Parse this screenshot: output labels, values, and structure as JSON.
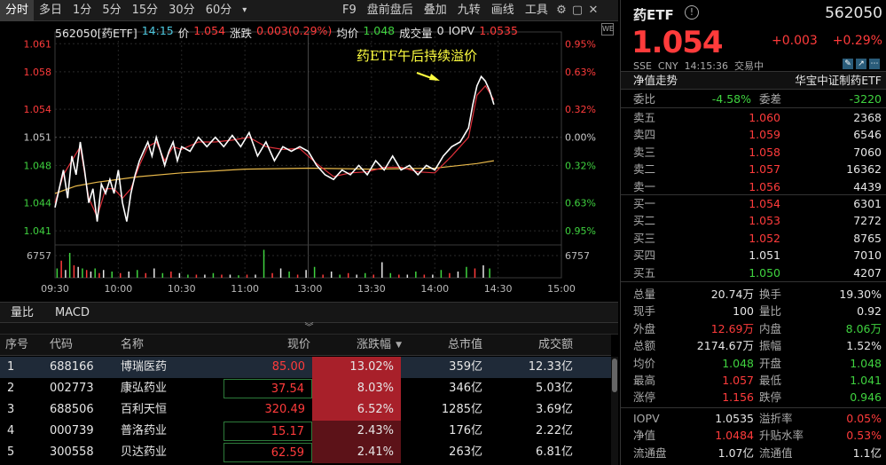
{
  "toolbar": {
    "tabs": [
      "分时",
      "多日",
      "1分",
      "5分",
      "15分",
      "30分",
      "60分"
    ],
    "dropdown": "▾",
    "right_items": [
      "F9",
      "盘前盘后",
      "叠加",
      "九转",
      "画线",
      "工具"
    ],
    "icons": [
      "gear-icon",
      "minimize-icon",
      "close-icon"
    ]
  },
  "info_line": {
    "code_name": "562050[药ETF]",
    "time": "14:15",
    "price_label": "价",
    "price": "1.054",
    "change_label": "涨跌",
    "change": "0.003(0.29%)",
    "avg_label": "均价",
    "avg": "1.048",
    "volume_label": "成交量",
    "volume": "0",
    "iopv_label": "IOPV",
    "iopv": "1.0535"
  },
  "chart_data": {
    "type": "line",
    "title": "",
    "annotation": "药ETF午后持续溢价",
    "left_ticks": [
      "1.061",
      "1.058",
      "1.054",
      "1.051",
      "1.048",
      "1.044",
      "1.041"
    ],
    "right_ticks": [
      "0.95%",
      "0.63%",
      "0.32%",
      "0.00%",
      "0.32%",
      "0.63%",
      "0.95%"
    ],
    "right_tick_colors": [
      "#ff3b3b",
      "#ff3b3b",
      "#ff3b3b",
      "#cccccc",
      "#3fd23f",
      "#3fd23f",
      "#3fd23f"
    ],
    "left_tick_colors": [
      "#ff3b3b",
      "#ff3b3b",
      "#ff3b3b",
      "#cccccc",
      "#3fd23f",
      "#3fd23f",
      "#3fd23f"
    ],
    "volume_tick": "6757",
    "x_ticks": [
      "09:30",
      "10:00",
      "10:30",
      "11:00",
      "13:00",
      "13:30",
      "14:00",
      "14:30",
      "15:00"
    ],
    "ylim": [
      1.0395,
      1.0615
    ],
    "price_series": [
      [
        0,
        1.0435
      ],
      [
        2,
        1.0455
      ],
      [
        4,
        1.0475
      ],
      [
        6,
        1.0445
      ],
      [
        8,
        1.049
      ],
      [
        10,
        1.047
      ],
      [
        12,
        1.0505
      ],
      [
        14,
        1.0475
      ],
      [
        16,
        1.044
      ],
      [
        18,
        1.0455
      ],
      [
        20,
        1.042
      ],
      [
        22,
        1.046
      ],
      [
        24,
        1.045
      ],
      [
        26,
        1.0465
      ],
      [
        28,
        1.045
      ],
      [
        30,
        1.0475
      ],
      [
        32,
        1.044
      ],
      [
        34,
        1.042
      ],
      [
        36,
        1.045
      ],
      [
        38,
        1.047
      ],
      [
        40,
        1.0485
      ],
      [
        42,
        1.0495
      ],
      [
        44,
        1.0505
      ],
      [
        46,
        1.049
      ],
      [
        48,
        1.051
      ],
      [
        50,
        1.0495
      ],
      [
        52,
        1.048
      ],
      [
        54,
        1.0495
      ],
      [
        56,
        1.0505
      ],
      [
        58,
        1.0485
      ],
      [
        60,
        1.05
      ],
      [
        64,
        1.0495
      ],
      [
        68,
        1.051
      ],
      [
        72,
        1.05
      ],
      [
        76,
        1.051
      ],
      [
        80,
        1.05
      ],
      [
        84,
        1.0512
      ],
      [
        88,
        1.05
      ],
      [
        92,
        1.0515
      ],
      [
        96,
        1.049
      ],
      [
        100,
        1.0505
      ],
      [
        104,
        1.0485
      ],
      [
        108,
        1.05
      ],
      [
        112,
        1.0495
      ],
      [
        116,
        1.05
      ],
      [
        120,
        1.0495
      ],
      [
        124,
        1.048
      ],
      [
        128,
        1.047
      ],
      [
        132,
        1.0465
      ],
      [
        136,
        1.0475
      ],
      [
        140,
        1.047
      ],
      [
        144,
        1.048
      ],
      [
        148,
        1.047
      ],
      [
        152,
        1.0485
      ],
      [
        156,
        1.0475
      ],
      [
        160,
        1.049
      ],
      [
        164,
        1.0475
      ],
      [
        168,
        1.048
      ],
      [
        172,
        1.047
      ],
      [
        176,
        1.048
      ],
      [
        180,
        1.0475
      ],
      [
        184,
        1.049
      ],
      [
        188,
        1.05
      ],
      [
        192,
        1.0505
      ],
      [
        196,
        1.052
      ],
      [
        198,
        1.0545
      ],
      [
        200,
        1.0565
      ],
      [
        202,
        1.0575
      ],
      [
        204,
        1.057
      ],
      [
        206,
        1.056
      ],
      [
        208,
        1.0545
      ]
    ],
    "iopv_series": [
      [
        0,
        1.044
      ],
      [
        4,
        1.047
      ],
      [
        8,
        1.0485
      ],
      [
        12,
        1.05
      ],
      [
        16,
        1.0445
      ],
      [
        20,
        1.0425
      ],
      [
        24,
        1.0455
      ],
      [
        28,
        1.0455
      ],
      [
        32,
        1.0445
      ],
      [
        36,
        1.0455
      ],
      [
        40,
        1.048
      ],
      [
        44,
        1.05
      ],
      [
        48,
        1.0505
      ],
      [
        52,
        1.0485
      ],
      [
        56,
        1.05
      ],
      [
        60,
        1.0497
      ],
      [
        68,
        1.0505
      ],
      [
        76,
        1.0505
      ],
      [
        84,
        1.0507
      ],
      [
        92,
        1.051
      ],
      [
        100,
        1.05
      ],
      [
        108,
        1.0497
      ],
      [
        116,
        1.0498
      ],
      [
        124,
        1.0482
      ],
      [
        132,
        1.0468
      ],
      [
        140,
        1.0472
      ],
      [
        148,
        1.0473
      ],
      [
        156,
        1.0478
      ],
      [
        164,
        1.0478
      ],
      [
        172,
        1.0473
      ],
      [
        180,
        1.0472
      ],
      [
        188,
        1.049
      ],
      [
        196,
        1.051
      ],
      [
        200,
        1.0555
      ],
      [
        204,
        1.0565
      ],
      [
        208,
        1.055
      ]
    ],
    "avg_series": [
      [
        0,
        1.045
      ],
      [
        10,
        1.0458
      ],
      [
        20,
        1.0462
      ],
      [
        40,
        1.0468
      ],
      [
        60,
        1.0472
      ],
      [
        90,
        1.0476
      ],
      [
        120,
        1.0477
      ],
      [
        150,
        1.0476
      ],
      [
        180,
        1.0477
      ],
      [
        200,
        1.0482
      ],
      [
        208,
        1.0485
      ]
    ],
    "volume_series": [
      [
        1,
        0.3
      ],
      [
        3,
        0.55
      ],
      [
        5,
        0.25
      ],
      [
        7,
        0.8
      ],
      [
        9,
        0.4
      ],
      [
        11,
        0.35
      ],
      [
        13,
        0.3
      ],
      [
        15,
        0.25
      ],
      [
        17,
        0.2
      ],
      [
        19,
        0.3
      ],
      [
        21,
        0.15
      ],
      [
        23,
        0.25
      ],
      [
        27,
        0.2
      ],
      [
        31,
        0.15
      ],
      [
        35,
        0.2
      ],
      [
        39,
        0.25
      ],
      [
        43,
        0.15
      ],
      [
        47,
        0.3
      ],
      [
        51,
        0.15
      ],
      [
        55,
        0.2
      ],
      [
        59,
        0.15
      ],
      [
        63,
        0.1
      ],
      [
        67,
        0.1
      ],
      [
        71,
        0.1
      ],
      [
        75,
        0.15
      ],
      [
        79,
        0.1
      ],
      [
        83,
        0.1
      ],
      [
        87,
        0.08
      ],
      [
        91,
        0.1
      ],
      [
        95,
        0.1
      ],
      [
        99,
        0.9
      ],
      [
        103,
        0.15
      ],
      [
        107,
        0.3
      ],
      [
        111,
        0.2
      ],
      [
        115,
        0.1
      ],
      [
        119,
        0.25
      ],
      [
        123,
        0.35
      ],
      [
        127,
        0.1
      ],
      [
        131,
        0.2
      ],
      [
        135,
        0.1
      ],
      [
        139,
        0.15
      ],
      [
        143,
        0.1
      ],
      [
        147,
        0.15
      ],
      [
        151,
        0.1
      ],
      [
        155,
        0.5
      ],
      [
        159,
        0.15
      ],
      [
        163,
        0.1
      ],
      [
        167,
        0.1
      ],
      [
        171,
        0.2
      ],
      [
        175,
        0.1
      ],
      [
        179,
        0.1
      ],
      [
        183,
        0.25
      ],
      [
        187,
        0.15
      ],
      [
        191,
        0.2
      ],
      [
        195,
        0.35
      ],
      [
        199,
        0.3
      ],
      [
        203,
        0.4
      ],
      [
        206,
        0.3
      ]
    ],
    "volume_colors": [
      "#3fd23f",
      "#ff3b3b",
      "#e6e6e6"
    ],
    "total_minutes": 240
  },
  "indicator_tabs": [
    "量比",
    "MACD"
  ],
  "table": {
    "headers": [
      "序号",
      "代码",
      "名称",
      "现价",
      "涨跌幅",
      "总市值",
      "成交额"
    ],
    "sort_icon": "▼",
    "rows": [
      {
        "no": "1",
        "code": "688166",
        "name": "博瑞医药",
        "price": "85.00",
        "change": "13.02%",
        "cap": "359亿",
        "amount": "12.33亿"
      },
      {
        "no": "2",
        "code": "002773",
        "name": "康弘药业",
        "price": "37.54",
        "change": "8.03%",
        "cap": "346亿",
        "amount": "5.03亿"
      },
      {
        "no": "3",
        "code": "688506",
        "name": "百利天恒",
        "price": "320.49",
        "change": "6.52%",
        "cap": "1285亿",
        "amount": "3.69亿"
      },
      {
        "no": "4",
        "code": "000739",
        "name": "普洛药业",
        "price": "15.17",
        "change": "2.43%",
        "cap": "176亿",
        "amount": "2.22亿"
      },
      {
        "no": "5",
        "code": "300558",
        "name": "贝达药业",
        "price": "62.59",
        "change": "2.41%",
        "cap": "263亿",
        "amount": "6.81亿"
      }
    ]
  },
  "right": {
    "name": "药ETF",
    "code": "562050",
    "price": "1.054",
    "change": "+0.003",
    "change_pct": "+0.29%",
    "exchange": "SSE",
    "currency": "CNY",
    "time": "14:15:36",
    "status": "交易中",
    "nav_label": "净值走势",
    "index_label": "华宝中证制药ETF",
    "weibi_label": "委比",
    "weibi": "-4.58%",
    "weicha_label": "委差",
    "weicha": "-3220",
    "asks": [
      {
        "label": "卖五",
        "price": "1.060",
        "vol": "2368"
      },
      {
        "label": "卖四",
        "price": "1.059",
        "vol": "6546"
      },
      {
        "label": "卖三",
        "price": "1.058",
        "vol": "7060"
      },
      {
        "label": "卖二",
        "price": "1.057",
        "vol": "16362"
      },
      {
        "label": "卖一",
        "price": "1.056",
        "vol": "4439"
      }
    ],
    "bids": [
      {
        "label": "买一",
        "price": "1.054",
        "vol": "6301",
        "color": "red"
      },
      {
        "label": "买二",
        "price": "1.053",
        "vol": "7272",
        "color": "red"
      },
      {
        "label": "买三",
        "price": "1.052",
        "vol": "8765",
        "color": "red"
      },
      {
        "label": "买四",
        "price": "1.051",
        "vol": "7010",
        "color": "white"
      },
      {
        "label": "买五",
        "price": "1.050",
        "vol": "4207",
        "color": "green"
      }
    ],
    "stats": [
      {
        "l1": "总量",
        "v1": "20.74万",
        "c1": "white",
        "l2": "换手",
        "v2": "19.30%",
        "c2": "white"
      },
      {
        "l1": "现手",
        "v1": "100",
        "c1": "white",
        "l2": "量比",
        "v2": "0.92",
        "c2": "white"
      },
      {
        "l1": "外盘",
        "v1": "12.69万",
        "c1": "red",
        "l2": "内盘",
        "v2": "8.06万",
        "c2": "green"
      },
      {
        "l1": "总额",
        "v1": "2174.67万",
        "c1": "white",
        "l2": "振幅",
        "v2": "1.52%",
        "c2": "white"
      },
      {
        "l1": "均价",
        "v1": "1.048",
        "c1": "green",
        "l2": "开盘",
        "v2": "1.048",
        "c2": "green"
      },
      {
        "l1": "最高",
        "v1": "1.057",
        "c1": "red",
        "l2": "最低",
        "v2": "1.041",
        "c2": "green"
      },
      {
        "l1": "涨停",
        "v1": "1.156",
        "c1": "red",
        "l2": "跌停",
        "v2": "0.946",
        "c2": "green"
      },
      {
        "l1": "IOPV",
        "v1": "1.0535",
        "c1": "white",
        "l2": "溢折率",
        "v2": "0.05%",
        "c2": "red"
      },
      {
        "l1": "净值",
        "v1": "1.0484",
        "c1": "red",
        "l2": "升贴水率",
        "v2": "0.53%",
        "c2": "red"
      },
      {
        "l1": "流通盘",
        "v1": "1.07亿",
        "c1": "white",
        "l2": "流通值",
        "v2": "1.1亿",
        "c2": "white"
      }
    ]
  }
}
